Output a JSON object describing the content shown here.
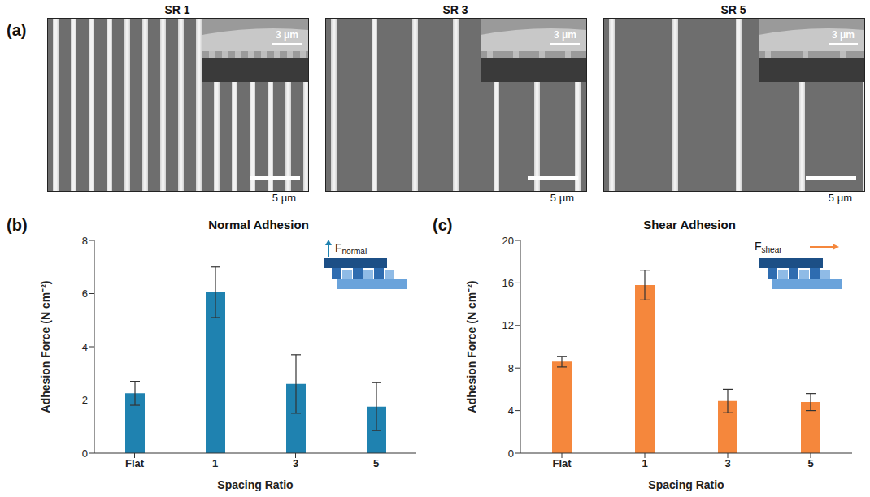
{
  "panel_a": {
    "letter": "(a)",
    "images": [
      {
        "title": "SR 1",
        "scale_bar": "5 μm",
        "inset_scale_bar": "3 μm"
      },
      {
        "title": "SR 3",
        "scale_bar": "5 μm",
        "inset_scale_bar": "3 μm"
      },
      {
        "title": "SR 5",
        "scale_bar": "5 μm",
        "inset_scale_bar": "3 μm"
      }
    ]
  },
  "chart_data": [
    {
      "type": "bar",
      "letter": "(b)",
      "title": "Normal Adhesion",
      "x_label": "Spacing Ratio",
      "y_label": "Adhesion Force (N cm⁻²)",
      "force_label": {
        "symbol": "F",
        "subscript": "normal"
      },
      "categories": [
        "Flat",
        "1",
        "3",
        "5"
      ],
      "values": [
        2.25,
        6.05,
        2.6,
        1.75
      ],
      "errors": [
        0.45,
        0.95,
        1.1,
        0.9
      ],
      "color": "#1f82b0",
      "ylim": [
        0,
        8
      ],
      "yticks": [
        0,
        2,
        4,
        6,
        8
      ],
      "grid": false
    },
    {
      "type": "bar",
      "letter": "(c)",
      "title": "Shear Adhesion",
      "x_label": "Spacing Ratio",
      "y_label": "Adhesion Force (N cm⁻²)",
      "force_label": {
        "symbol": "F",
        "subscript": "shear"
      },
      "categories": [
        "Flat",
        "1",
        "3",
        "5"
      ],
      "values": [
        8.6,
        15.8,
        4.9,
        4.8
      ],
      "errors": [
        0.5,
        1.4,
        1.1,
        0.8
      ],
      "color": "#f5873c",
      "ylim": [
        0,
        20
      ],
      "yticks": [
        0,
        4,
        8,
        12,
        16,
        20
      ],
      "grid": false
    }
  ]
}
